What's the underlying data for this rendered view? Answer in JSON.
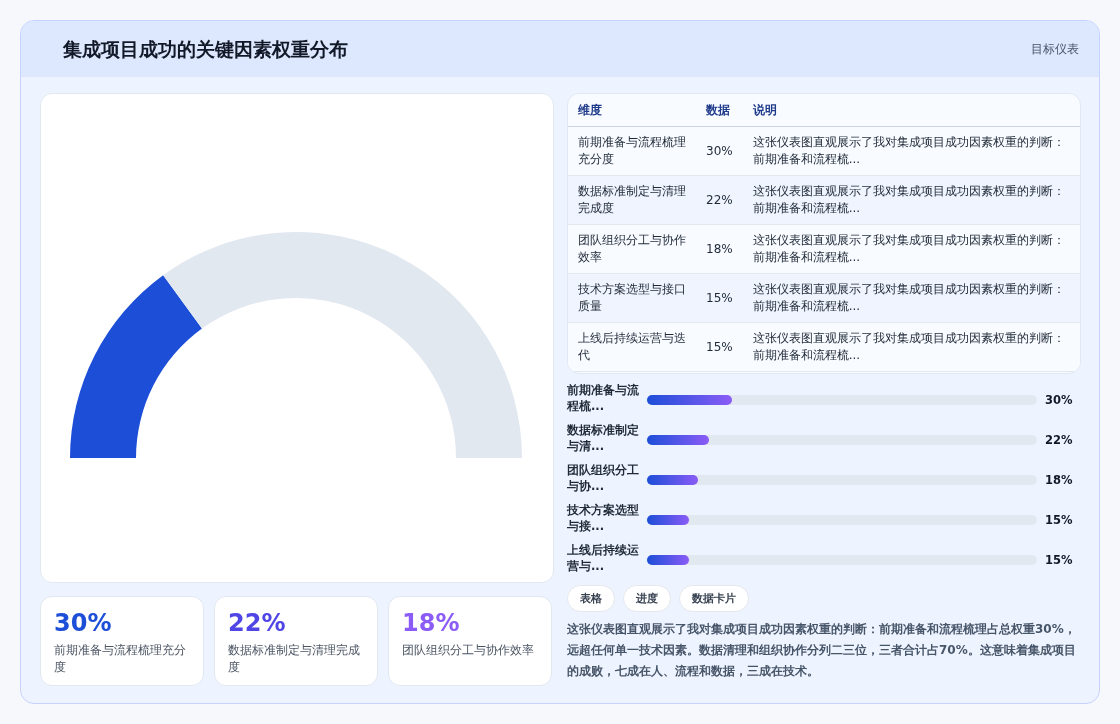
{
  "chart_data": [
    {
      "type": "other",
      "title": "集成项目成功的关键因素权重分布",
      "subtitle": "目标仪表"
    },
    {
      "type": "donut",
      "categories": [
        null,
        null
      ],
      "values": [
        30,
        70
      ],
      "colors": [
        "#1d4ed8",
        "#e2e8f0"
      ]
    },
    {
      "type": "other",
      "categories": [
        "前期准备与流程梳理充分度",
        "数据标准制定与清理完成度",
        "团队组织分工与协作效率",
        "技术方案选型与接口质量",
        "上线后持续运营与迭代"
      ],
      "value_labels": [
        "30%",
        "22%",
        "18%",
        "15%",
        "15%"
      ],
      "annotations": [
        "维度",
        "数据",
        "说明",
        "这张仪表图直观展示了我对集成项目成功因素权重的判断：前期准备和流程梳...",
        "这张仪表图直观展示了我对集成项目成功因素权重的判断：前期准备和流程梳...",
        "这张仪表图直观展示了我对集成项目成功因素权重的判断：前期准备和流程梳...",
        "这张仪表图直观展示了我对集成项目成功因素权重的判断：前期准备和流程梳...",
        "这张仪表图直观展示了我对集成项目成功因素权重的判断：前期准备和流程梳..."
      ]
    },
    {
      "type": "bar",
      "orientation": "horizontal",
      "categories": [
        "前期准备与流程梳...",
        "数据标准制定与清...",
        "团队组织分工与协...",
        "技术方案选型与接...",
        "上线后持续运营与..."
      ],
      "values": [
        30,
        22,
        18,
        15,
        15
      ],
      "value_labels": [
        "30%",
        "22%",
        "18%",
        "15%",
        "15%"
      ],
      "color": "#1d4ed8",
      "xlim": [
        0,
        138
      ],
      "annotations": [
        "表格",
        "进度",
        "数据卡片",
        "这张仪表图直观展示了我对集成项目成功因素权重的判断：前期准备和流程梳理占总权重30%，远超任何单一技术因素。数据清理和组织协作分列二三位，三者合计占70%。这意味着集成项目的成败，七成在人、流程和数据，三成在技术。"
      ]
    },
    {
      "type": "other",
      "categories": [
        "前期准备与流程梳理充分度",
        "数据标准制定与清理完成度",
        "团队组织分工与协作效率"
      ],
      "value_labels": [
        "30%",
        "22%",
        "18%"
      ]
    }
  ]
}
